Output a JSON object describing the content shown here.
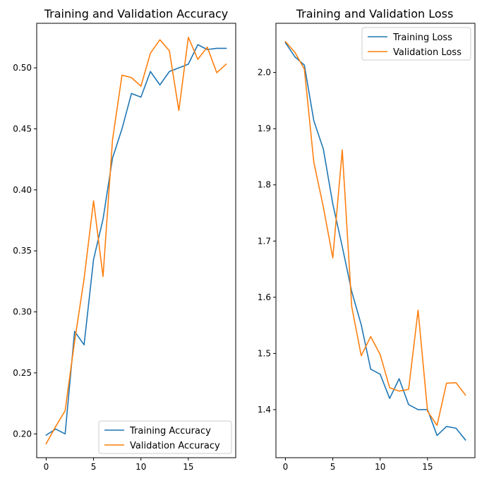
{
  "chart_data": [
    {
      "type": "line",
      "title": "Training and Validation Accuracy",
      "xlabel": "",
      "ylabel": "",
      "xlim": [
        -1,
        20
      ],
      "ylim": [
        0.1805,
        0.5365
      ],
      "xticks": [
        "0",
        "5",
        "10",
        "15"
      ],
      "yticks": [
        "0.20",
        "0.25",
        "0.30",
        "0.35",
        "0.40",
        "0.45",
        "0.50"
      ],
      "legend_position": "lower-right",
      "x": [
        0,
        1,
        2,
        3,
        4,
        5,
        6,
        7,
        8,
        9,
        10,
        11,
        12,
        13,
        14,
        15,
        16,
        17,
        18,
        19
      ],
      "series": [
        {
          "name": "Training Accuracy",
          "color": "#1f77b4",
          "values": [
            0.199,
            0.204,
            0.2,
            0.284,
            0.273,
            0.343,
            0.376,
            0.426,
            0.45,
            0.479,
            0.476,
            0.497,
            0.486,
            0.497,
            0.5,
            0.503,
            0.519,
            0.515,
            0.516,
            0.516
          ]
        },
        {
          "name": "Validation Accuracy",
          "color": "#ff7f0e",
          "values": [
            0.192,
            0.206,
            0.219,
            0.276,
            0.327,
            0.391,
            0.329,
            0.441,
            0.494,
            0.492,
            0.485,
            0.512,
            0.523,
            0.514,
            0.465,
            0.525,
            0.507,
            0.517,
            0.496,
            0.503
          ]
        }
      ]
    },
    {
      "type": "line",
      "title": "Training and Validation Loss",
      "xlabel": "",
      "ylabel": "",
      "xlim": [
        -1,
        20
      ],
      "ylim": [
        1.3145,
        2.0875
      ],
      "xticks": [
        "0",
        "5",
        "10",
        "15"
      ],
      "yticks": [
        "1.4",
        "1.5",
        "1.6",
        "1.7",
        "1.8",
        "1.9",
        "2.0"
      ],
      "legend_position": "upper-right",
      "x": [
        0,
        1,
        2,
        3,
        4,
        5,
        6,
        7,
        8,
        9,
        10,
        11,
        12,
        13,
        14,
        15,
        16,
        17,
        18,
        19
      ],
      "series": [
        {
          "name": "Training Loss",
          "color": "#1f77b4",
          "values": [
            2.053,
            2.028,
            2.013,
            1.914,
            1.864,
            1.766,
            1.69,
            1.61,
            1.551,
            1.472,
            1.463,
            1.42,
            1.455,
            1.409,
            1.4,
            1.4,
            1.354,
            1.37,
            1.367,
            1.346
          ]
        },
        {
          "name": "Validation Loss",
          "color": "#ff7f0e",
          "values": [
            2.055,
            2.036,
            2.006,
            1.84,
            1.761,
            1.67,
            1.862,
            1.583,
            1.496,
            1.53,
            1.498,
            1.439,
            1.433,
            1.436,
            1.577,
            1.397,
            1.372,
            1.447,
            1.448,
            1.426
          ]
        }
      ]
    }
  ]
}
